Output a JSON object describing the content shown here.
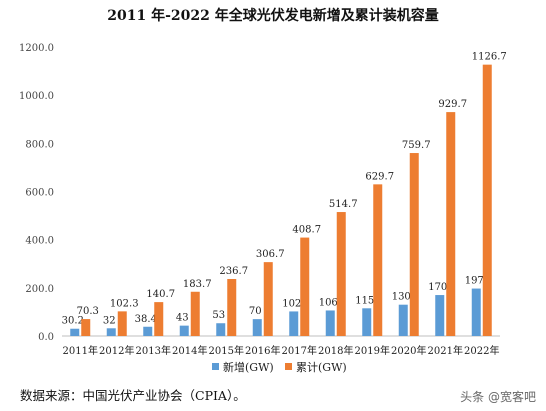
{
  "chart_data": {
    "type": "bar",
    "title": "2011 年-2022 年全球光伏发电新增及累计装机容量",
    "categories": [
      "2011年",
      "2012年",
      "2013年",
      "2014年",
      "2015年",
      "2016年",
      "2017年",
      "2018年",
      "2019年",
      "2020年",
      "2021年",
      "2022年"
    ],
    "series": [
      {
        "name": "新增(GW)",
        "color": "#5b9bd5",
        "values": [
          30.2,
          32,
          38.4,
          43,
          53,
          70,
          102,
          106,
          115,
          130,
          170,
          197
        ],
        "labels": [
          "30.2",
          "32",
          "38.4",
          "43",
          "53",
          "70",
          "102",
          "106",
          "115",
          "130",
          "170",
          "197"
        ]
      },
      {
        "name": "累计(GW)",
        "color": "#ed7d31",
        "values": [
          70.3,
          102.3,
          140.7,
          183.7,
          236.7,
          306.7,
          408.7,
          514.7,
          629.7,
          759.7,
          929.7,
          1126.7
        ],
        "labels": [
          "70.3",
          "102.3",
          "140.7",
          "183.7",
          "236.7",
          "306.7",
          "408.7",
          "514.7",
          "629.7",
          "759.7",
          "929.7",
          "1126.7"
        ]
      }
    ],
    "ylim": [
      0,
      1200
    ],
    "yticks": [
      "0.0",
      "200.0",
      "400.0",
      "600.0",
      "800.0",
      "1000.0",
      "1200.0"
    ],
    "ytick_values": [
      0,
      200,
      400,
      600,
      800,
      1000,
      1200
    ],
    "grid": false,
    "legend_position": "bottom-center"
  },
  "source_text": "数据来源：中国光伏产业协会（CPIA）。",
  "watermark": "头条 @宽客吧"
}
